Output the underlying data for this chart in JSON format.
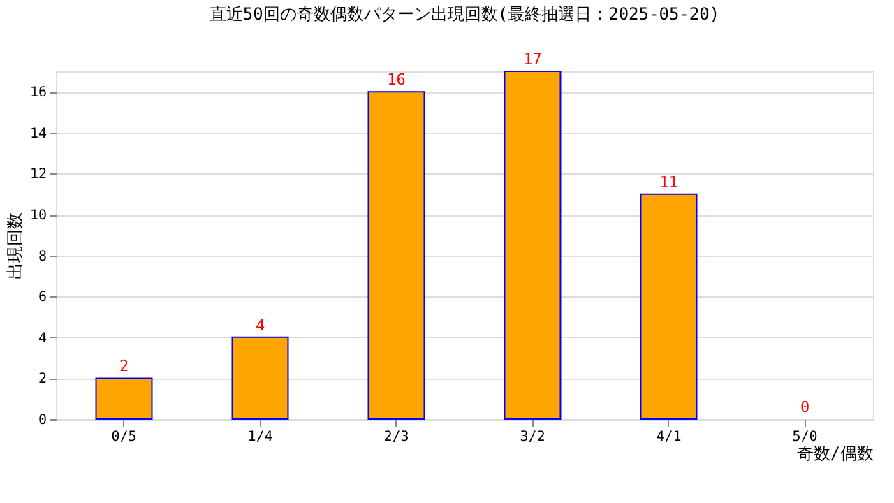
{
  "chart_data": {
    "type": "bar",
    "title": "直近50回の奇数偶数パターン出現回数(最終抽選日：2025-05-20)",
    "xlabel": "奇数/偶数",
    "ylabel": "出現回数",
    "categories": [
      "0/5",
      "1/4",
      "2/3",
      "3/2",
      "4/1",
      "5/0"
    ],
    "values": [
      2,
      4,
      16,
      17,
      11,
      0
    ],
    "color": "#ffa500",
    "ylim": [
      0,
      17
    ],
    "yticks": [
      0,
      2,
      4,
      6,
      8,
      10,
      12,
      14,
      16
    ],
    "grid": "y",
    "data_labels": true
  }
}
